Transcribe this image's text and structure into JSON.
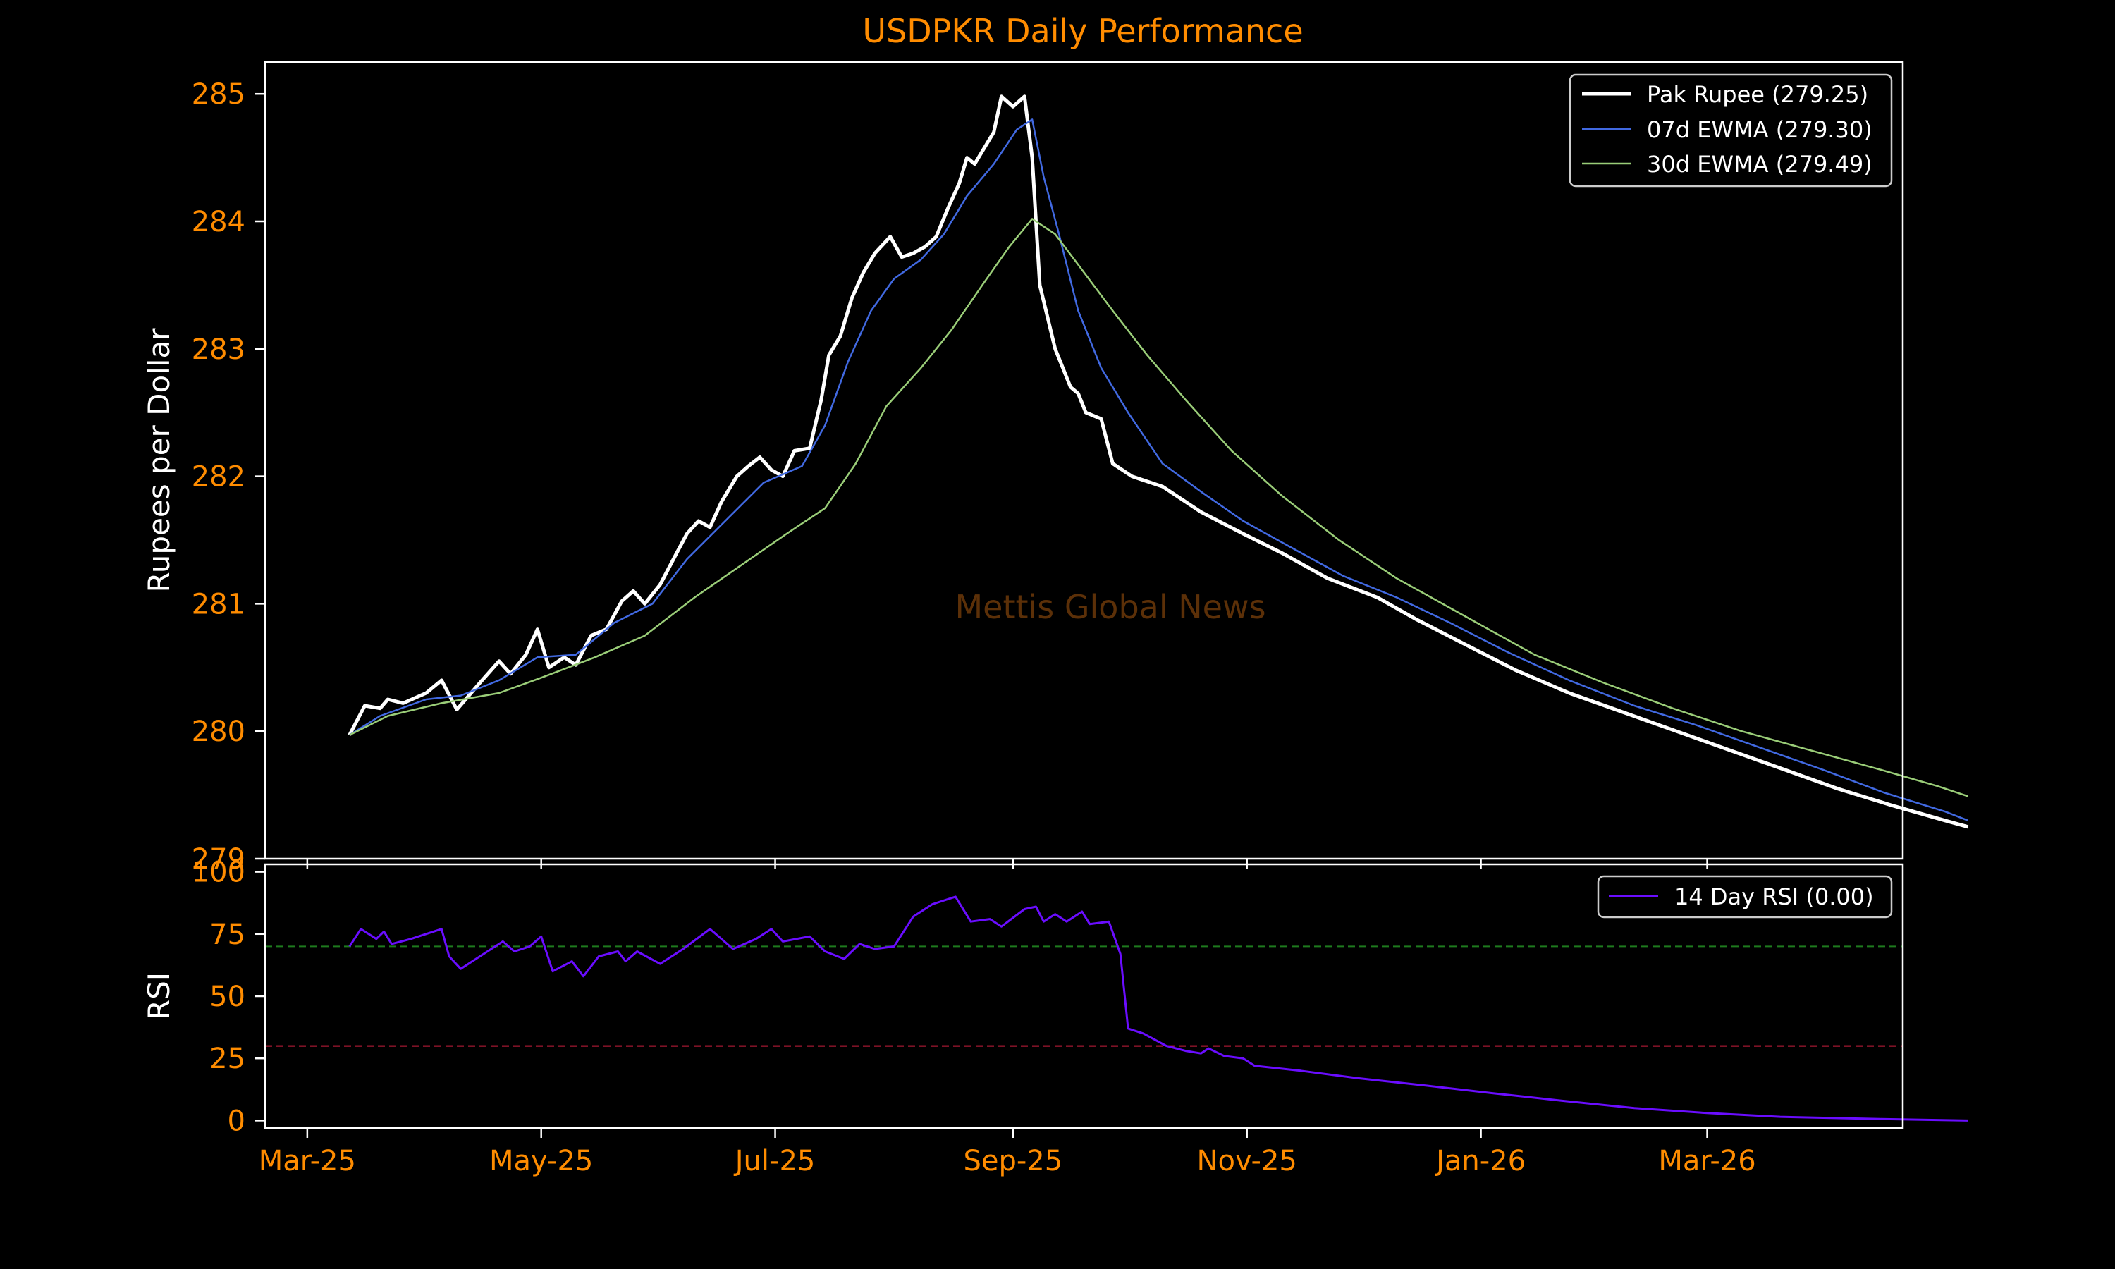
{
  "colors": {
    "background": "#000000",
    "axes_frame": "#ffffff",
    "tick_label": "#ff8c00",
    "axis_label": "#ffffff",
    "title": "#ff8c00",
    "watermark": "#5c3008",
    "price": "#ffffff",
    "ewma7": "#4169e1",
    "ewma30": "#9acd78",
    "rsi": "#6a0dff",
    "rsi_overbought": "#1e7a1e",
    "rsi_oversold": "#c81e3c"
  },
  "chart_data": [
    {
      "type": "line",
      "title": "USDPKR Daily Performance",
      "ylabel": "Rupees per Dollar",
      "xlabel": "",
      "watermark": "Mettis Global News",
      "ylim": [
        279,
        285.25
      ],
      "yticks": [
        279,
        280,
        281,
        282,
        283,
        284,
        285
      ],
      "xlim": [
        "2025-02-18",
        "2026-04-21"
      ],
      "xticks": [
        "Mar-25",
        "May-25",
        "Jul-25",
        "Sep-25",
        "Nov-25",
        "Jan-26",
        "Mar-26"
      ],
      "xtick_dates": [
        "2025-03-01",
        "2025-05-01",
        "2025-07-01",
        "2025-09-01",
        "2025-11-01",
        "2026-01-01",
        "2026-03-01"
      ],
      "legend": {
        "placement": "top-right"
      },
      "grid": false,
      "series": [
        {
          "name": "Pak Rupee (279.25)",
          "points": [
            [
              "2025-03-12",
              279.97
            ],
            [
              "2025-03-16",
              280.2
            ],
            [
              "2025-03-20",
              280.18
            ],
            [
              "2025-03-22",
              280.25
            ],
            [
              "2025-03-26",
              280.22
            ],
            [
              "2025-04-01",
              280.3
            ],
            [
              "2025-04-05",
              280.4
            ],
            [
              "2025-04-09",
              280.17
            ],
            [
              "2025-04-15",
              280.38
            ],
            [
              "2025-04-20",
              280.55
            ],
            [
              "2025-04-23",
              280.45
            ],
            [
              "2025-04-27",
              280.6
            ],
            [
              "2025-04-30",
              280.8
            ],
            [
              "2025-05-03",
              280.5
            ],
            [
              "2025-05-07",
              280.58
            ],
            [
              "2025-05-10",
              280.52
            ],
            [
              "2025-05-14",
              280.75
            ],
            [
              "2025-05-18",
              280.8
            ],
            [
              "2025-05-22",
              281.02
            ],
            [
              "2025-05-25",
              281.1
            ],
            [
              "2025-05-28",
              281.0
            ],
            [
              "2025-06-01",
              281.15
            ],
            [
              "2025-06-05",
              281.38
            ],
            [
              "2025-06-08",
              281.55
            ],
            [
              "2025-06-11",
              281.65
            ],
            [
              "2025-06-14",
              281.6
            ],
            [
              "2025-06-17",
              281.8
            ],
            [
              "2025-06-21",
              282.0
            ],
            [
              "2025-06-24",
              282.08
            ],
            [
              "2025-06-27",
              282.15
            ],
            [
              "2025-06-30",
              282.05
            ],
            [
              "2025-07-03",
              282.0
            ],
            [
              "2025-07-06",
              282.2
            ],
            [
              "2025-07-10",
              282.22
            ],
            [
              "2025-07-13",
              282.6
            ],
            [
              "2025-07-15",
              282.95
            ],
            [
              "2025-07-18",
              283.1
            ],
            [
              "2025-07-21",
              283.4
            ],
            [
              "2025-07-24",
              283.6
            ],
            [
              "2025-07-27",
              283.75
            ],
            [
              "2025-07-31",
              283.88
            ],
            [
              "2025-08-03",
              283.72
            ],
            [
              "2025-08-06",
              283.75
            ],
            [
              "2025-08-09",
              283.8
            ],
            [
              "2025-08-12",
              283.88
            ],
            [
              "2025-08-15",
              284.1
            ],
            [
              "2025-08-18",
              284.3
            ],
            [
              "2025-08-20",
              284.5
            ],
            [
              "2025-08-22",
              284.45
            ],
            [
              "2025-08-25",
              284.6
            ],
            [
              "2025-08-27",
              284.7
            ],
            [
              "2025-08-29",
              284.98
            ],
            [
              "2025-09-01",
              284.9
            ],
            [
              "2025-09-04",
              284.98
            ],
            [
              "2025-09-06",
              284.5
            ],
            [
              "2025-09-08",
              283.5
            ],
            [
              "2025-09-12",
              283.0
            ],
            [
              "2025-09-16",
              282.7
            ],
            [
              "2025-09-18",
              282.65
            ],
            [
              "2025-09-20",
              282.5
            ],
            [
              "2025-09-24",
              282.45
            ],
            [
              "2025-09-27",
              282.1
            ],
            [
              "2025-10-02",
              282.0
            ],
            [
              "2025-10-10",
              281.92
            ],
            [
              "2025-10-20",
              281.72
            ],
            [
              "2025-10-31",
              281.55
            ],
            [
              "2025-11-10",
              281.4
            ],
            [
              "2025-11-22",
              281.2
            ],
            [
              "2025-12-05",
              281.05
            ],
            [
              "2025-12-15",
              280.88
            ],
            [
              "2025-12-28",
              280.68
            ],
            [
              "2026-01-10",
              280.48
            ],
            [
              "2026-01-24",
              280.3
            ],
            [
              "2026-02-07",
              280.15
            ],
            [
              "2026-02-21",
              280.0
            ],
            [
              "2026-03-07",
              279.85
            ],
            [
              "2026-03-21",
              279.7
            ],
            [
              "2026-04-04",
              279.55
            ],
            [
              "2026-04-18",
              279.42
            ],
            [
              "2026-05-02",
              279.3
            ],
            [
              "2026-05-08",
              279.25
            ]
          ]
        },
        {
          "name": "07d EWMA (279.30)",
          "points": [
            [
              "2025-03-12",
              279.97
            ],
            [
              "2025-03-20",
              280.12
            ],
            [
              "2025-04-01",
              280.25
            ],
            [
              "2025-04-10",
              280.28
            ],
            [
              "2025-04-20",
              280.4
            ],
            [
              "2025-04-30",
              280.58
            ],
            [
              "2025-05-10",
              280.6
            ],
            [
              "2025-05-20",
              280.85
            ],
            [
              "2025-05-30",
              281.0
            ],
            [
              "2025-06-08",
              281.35
            ],
            [
              "2025-06-18",
              281.65
            ],
            [
              "2025-06-28",
              281.95
            ],
            [
              "2025-07-08",
              282.08
            ],
            [
              "2025-07-14",
              282.4
            ],
            [
              "2025-07-20",
              282.9
            ],
            [
              "2025-07-26",
              283.3
            ],
            [
              "2025-08-01",
              283.55
            ],
            [
              "2025-08-08",
              283.7
            ],
            [
              "2025-08-14",
              283.9
            ],
            [
              "2025-08-20",
              284.2
            ],
            [
              "2025-08-27",
              284.45
            ],
            [
              "2025-09-02",
              284.72
            ],
            [
              "2025-09-06",
              284.8
            ],
            [
              "2025-09-09",
              284.35
            ],
            [
              "2025-09-13",
              283.9
            ],
            [
              "2025-09-18",
              283.3
            ],
            [
              "2025-09-24",
              282.85
            ],
            [
              "2025-10-01",
              282.5
            ],
            [
              "2025-10-10",
              282.1
            ],
            [
              "2025-10-20",
              281.88
            ],
            [
              "2025-10-31",
              281.65
            ],
            [
              "2025-11-12",
              281.45
            ],
            [
              "2025-11-26",
              281.22
            ],
            [
              "2025-12-10",
              281.05
            ],
            [
              "2025-12-24",
              280.85
            ],
            [
              "2026-01-08",
              280.62
            ],
            [
              "2026-01-24",
              280.4
            ],
            [
              "2026-02-10",
              280.2
            ],
            [
              "2026-02-26",
              280.05
            ],
            [
              "2026-03-14",
              279.88
            ],
            [
              "2026-03-31",
              279.7
            ],
            [
              "2026-04-16",
              279.52
            ],
            [
              "2026-05-02",
              279.37
            ],
            [
              "2026-05-08",
              279.3
            ]
          ]
        },
        {
          "name": "30d EWMA (279.49)",
          "points": [
            [
              "2025-03-12",
              279.97
            ],
            [
              "2025-03-22",
              280.12
            ],
            [
              "2025-04-05",
              280.22
            ],
            [
              "2025-04-20",
              280.3
            ],
            [
              "2025-05-01",
              280.42
            ],
            [
              "2025-05-15",
              280.58
            ],
            [
              "2025-05-28",
              280.75
            ],
            [
              "2025-06-10",
              281.05
            ],
            [
              "2025-06-22",
              281.3
            ],
            [
              "2025-07-04",
              281.55
            ],
            [
              "2025-07-14",
              281.75
            ],
            [
              "2025-07-22",
              282.1
            ],
            [
              "2025-07-30",
              282.55
            ],
            [
              "2025-08-08",
              282.85
            ],
            [
              "2025-08-16",
              283.15
            ],
            [
              "2025-08-24",
              283.5
            ],
            [
              "2025-08-31",
              283.8
            ],
            [
              "2025-09-06",
              284.02
            ],
            [
              "2025-09-12",
              283.9
            ],
            [
              "2025-09-19",
              283.62
            ],
            [
              "2025-09-27",
              283.3
            ],
            [
              "2025-10-06",
              282.95
            ],
            [
              "2025-10-16",
              282.6
            ],
            [
              "2025-10-28",
              282.2
            ],
            [
              "2025-11-10",
              281.85
            ],
            [
              "2025-11-25",
              281.5
            ],
            [
              "2025-12-10",
              281.2
            ],
            [
              "2025-12-28",
              280.9
            ],
            [
              "2026-01-15",
              280.6
            ],
            [
              "2026-02-02",
              280.38
            ],
            [
              "2026-02-20",
              280.18
            ],
            [
              "2026-03-10",
              280.0
            ],
            [
              "2026-03-28",
              279.85
            ],
            [
              "2026-04-15",
              279.7
            ],
            [
              "2026-04-30",
              279.57
            ],
            [
              "2026-05-08",
              279.49
            ]
          ]
        }
      ]
    },
    {
      "type": "line",
      "title": "",
      "ylabel": "RSI",
      "xlabel": "",
      "ylim": [
        -3,
        103
      ],
      "yticks": [
        0,
        25,
        50,
        75,
        100
      ],
      "xlim": [
        "2025-02-18",
        "2026-04-21"
      ],
      "xticks": [
        "Mar-25",
        "May-25",
        "Jul-25",
        "Sep-25",
        "Nov-25",
        "Jan-26",
        "Mar-26"
      ],
      "xtick_dates": [
        "2025-03-01",
        "2025-05-01",
        "2025-07-01",
        "2025-09-01",
        "2025-11-01",
        "2026-01-01",
        "2026-03-01"
      ],
      "legend": {
        "placement": "top-right"
      },
      "grid": false,
      "reference_lines": [
        70,
        30
      ],
      "series": [
        {
          "name": "14 Day RSI (0.00)",
          "points": [
            [
              "2025-03-12",
              70
            ],
            [
              "2025-03-15",
              77
            ],
            [
              "2025-03-19",
              73
            ],
            [
              "2025-03-21",
              76
            ],
            [
              "2025-03-23",
              71
            ],
            [
              "2025-03-28",
              73
            ],
            [
              "2025-04-05",
              77
            ],
            [
              "2025-04-07",
              66
            ],
            [
              "2025-04-10",
              61
            ],
            [
              "2025-04-15",
              66
            ],
            [
              "2025-04-21",
              72
            ],
            [
              "2025-04-24",
              68
            ],
            [
              "2025-04-28",
              70
            ],
            [
              "2025-05-01",
              74
            ],
            [
              "2025-05-04",
              60
            ],
            [
              "2025-05-09",
              64
            ],
            [
              "2025-05-12",
              58
            ],
            [
              "2025-05-16",
              66
            ],
            [
              "2025-05-21",
              68
            ],
            [
              "2025-05-23",
              64
            ],
            [
              "2025-05-26",
              68
            ],
            [
              "2025-06-01",
              63
            ],
            [
              "2025-06-07",
              69
            ],
            [
              "2025-06-14",
              77
            ],
            [
              "2025-06-20",
              69
            ],
            [
              "2025-06-26",
              73
            ],
            [
              "2025-06-30",
              77
            ],
            [
              "2025-07-03",
              72
            ],
            [
              "2025-07-10",
              74
            ],
            [
              "2025-07-14",
              68
            ],
            [
              "2025-07-19",
              65
            ],
            [
              "2025-07-23",
              71
            ],
            [
              "2025-07-27",
              69
            ],
            [
              "2025-08-01",
              70
            ],
            [
              "2025-08-06",
              82
            ],
            [
              "2025-08-11",
              87
            ],
            [
              "2025-08-17",
              90
            ],
            [
              "2025-08-21",
              80
            ],
            [
              "2025-08-26",
              81
            ],
            [
              "2025-08-29",
              78
            ],
            [
              "2025-09-04",
              85
            ],
            [
              "2025-09-07",
              86
            ],
            [
              "2025-09-09",
              80
            ],
            [
              "2025-09-12",
              83
            ],
            [
              "2025-09-15",
              80
            ],
            [
              "2025-09-19",
              84
            ],
            [
              "2025-09-21",
              79
            ],
            [
              "2025-09-26",
              80
            ],
            [
              "2025-09-29",
              67
            ],
            [
              "2025-10-01",
              37
            ],
            [
              "2025-10-05",
              35
            ],
            [
              "2025-10-11",
              30
            ],
            [
              "2025-10-16",
              28
            ],
            [
              "2025-10-20",
              27
            ],
            [
              "2025-10-22",
              29
            ],
            [
              "2025-10-26",
              26
            ],
            [
              "2025-10-31",
              25
            ],
            [
              "2025-11-03",
              22
            ],
            [
              "2025-11-15",
              20
            ],
            [
              "2025-11-30",
              17
            ],
            [
              "2025-12-18",
              14
            ],
            [
              "2026-01-04",
              11
            ],
            [
              "2026-01-22",
              8
            ],
            [
              "2026-02-10",
              5
            ],
            [
              "2026-03-01",
              3
            ],
            [
              "2026-03-20",
              1.5
            ],
            [
              "2026-04-15",
              0.6
            ],
            [
              "2026-05-08",
              0
            ]
          ]
        }
      ]
    }
  ]
}
